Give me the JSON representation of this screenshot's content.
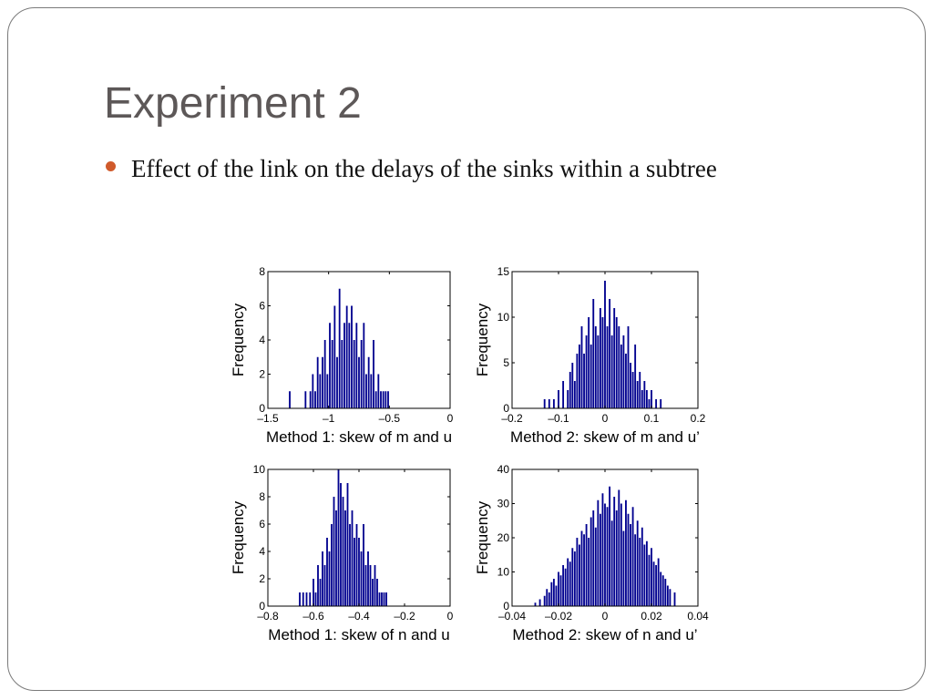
{
  "slide": {
    "title": "Experiment 2",
    "bullets": [
      "Effect of the link on the delays of the sinks within a subtree"
    ]
  },
  "colors": {
    "bar": "#00008f",
    "bullet": "#d05a2b",
    "title": "#5d5858"
  },
  "chart_data": [
    {
      "type": "bar",
      "subtype": "histogram",
      "xlabel": "Method 1: skew of m and u",
      "ylabel": "Frequency",
      "xlim": [
        -1.5,
        0
      ],
      "ylim": [
        0,
        8
      ],
      "xticks": [
        -1.5,
        -1,
        -0.5,
        0
      ],
      "xtick_labels": [
        "–1.5",
        "–1",
        "–0.5",
        "0"
      ],
      "yticks": [
        0,
        2,
        4,
        6,
        8
      ],
      "ytick_labels": [
        "0",
        "2",
        "4",
        "6",
        "8"
      ],
      "x": [
        -1.32,
        -1.19,
        -1.15,
        -1.13,
        -1.11,
        -1.09,
        -1.07,
        -1.05,
        -1.03,
        -1.01,
        -0.99,
        -0.97,
        -0.95,
        -0.93,
        -0.91,
        -0.89,
        -0.87,
        -0.85,
        -0.83,
        -0.81,
        -0.79,
        -0.77,
        -0.75,
        -0.73,
        -0.71,
        -0.69,
        -0.67,
        -0.65,
        -0.63,
        -0.61,
        -0.59,
        -0.57,
        -0.55,
        -0.53,
        -0.51
      ],
      "values": [
        1,
        1,
        1,
        2,
        1,
        3,
        2,
        3,
        4,
        2,
        5,
        4,
        6,
        3,
        7,
        4,
        5,
        6,
        5,
        6,
        4,
        5,
        3,
        4,
        5,
        2,
        3,
        2,
        4,
        1,
        2,
        1,
        1,
        1,
        1
      ]
    },
    {
      "type": "bar",
      "subtype": "histogram",
      "xlabel": "Method 2: skew of m and u’",
      "ylabel": "Frequency",
      "xlim": [
        -0.2,
        0.2
      ],
      "ylim": [
        0,
        15
      ],
      "xticks": [
        -0.2,
        -0.1,
        0,
        0.1,
        0.2
      ],
      "xtick_labels": [
        "–0.2",
        "–0.1",
        "0",
        "0.1",
        "0.2"
      ],
      "yticks": [
        0,
        5,
        10,
        15
      ],
      "ytick_labels": [
        "0",
        "5",
        "10",
        "15"
      ],
      "x": [
        -0.13,
        -0.12,
        -0.11,
        -0.1,
        -0.09,
        -0.08,
        -0.075,
        -0.07,
        -0.065,
        -0.06,
        -0.055,
        -0.05,
        -0.045,
        -0.04,
        -0.035,
        -0.03,
        -0.025,
        -0.02,
        -0.015,
        -0.01,
        -0.005,
        0,
        0.005,
        0.01,
        0.015,
        0.02,
        0.025,
        0.03,
        0.035,
        0.04,
        0.045,
        0.05,
        0.055,
        0.06,
        0.065,
        0.07,
        0.075,
        0.08,
        0.085,
        0.09,
        0.095,
        0.1,
        0.11,
        0.12
      ],
      "values": [
        1,
        1,
        1,
        2,
        3,
        2,
        4,
        5,
        3,
        6,
        7,
        9,
        6,
        8,
        10,
        7,
        12,
        9,
        8,
        11,
        10,
        14,
        9,
        12,
        8,
        11,
        10,
        9,
        7,
        8,
        6,
        9,
        5,
        4,
        7,
        3,
        4,
        2,
        3,
        2,
        1,
        2,
        1,
        1
      ]
    },
    {
      "type": "bar",
      "subtype": "histogram",
      "xlabel": "Method 1: skew of n and u",
      "ylabel": "Frequency",
      "xlim": [
        -0.8,
        0
      ],
      "ylim": [
        0,
        10
      ],
      "xticks": [
        -0.8,
        -0.6,
        -0.4,
        -0.2,
        0
      ],
      "xtick_labels": [
        "–0.8",
        "–0.6",
        "–0.4",
        "–0.2",
        "0"
      ],
      "yticks": [
        0,
        2,
        4,
        6,
        8,
        10
      ],
      "ytick_labels": [
        "0",
        "2",
        "4",
        "6",
        "8",
        "10"
      ],
      "x": [
        -0.66,
        -0.645,
        -0.63,
        -0.615,
        -0.6,
        -0.59,
        -0.58,
        -0.57,
        -0.56,
        -0.55,
        -0.54,
        -0.53,
        -0.52,
        -0.51,
        -0.5,
        -0.49,
        -0.48,
        -0.47,
        -0.46,
        -0.45,
        -0.44,
        -0.43,
        -0.42,
        -0.41,
        -0.4,
        -0.39,
        -0.38,
        -0.37,
        -0.36,
        -0.35,
        -0.34,
        -0.33,
        -0.32,
        -0.31,
        -0.3,
        -0.29,
        -0.28
      ],
      "values": [
        1,
        1,
        1,
        1,
        2,
        1,
        3,
        2,
        4,
        3,
        5,
        4,
        6,
        8,
        7,
        10,
        9,
        8,
        7,
        9,
        6,
        7,
        5,
        6,
        5,
        4,
        6,
        3,
        4,
        3,
        2,
        3,
        2,
        1,
        1,
        1,
        1
      ]
    },
    {
      "type": "bar",
      "subtype": "histogram",
      "xlabel": "Method 2: skew of n and u’",
      "ylabel": "Frequency",
      "xlim": [
        -0.04,
        0.04
      ],
      "ylim": [
        0,
        40
      ],
      "xticks": [
        -0.04,
        -0.02,
        0,
        0.02,
        0.04
      ],
      "xtick_labels": [
        "–0.04",
        "–0.02",
        "0",
        "0.02",
        "0.04"
      ],
      "yticks": [
        0,
        10,
        20,
        30,
        40
      ],
      "ytick_labels": [
        "0",
        "10",
        "20",
        "30",
        "40"
      ],
      "x": [
        -0.03,
        -0.028,
        -0.026,
        -0.025,
        -0.024,
        -0.023,
        -0.022,
        -0.021,
        -0.02,
        -0.019,
        -0.018,
        -0.017,
        -0.016,
        -0.015,
        -0.014,
        -0.013,
        -0.012,
        -0.011,
        -0.01,
        -0.009,
        -0.008,
        -0.007,
        -0.006,
        -0.005,
        -0.004,
        -0.003,
        -0.002,
        -0.001,
        0,
        0.001,
        0.002,
        0.003,
        0.004,
        0.005,
        0.006,
        0.007,
        0.008,
        0.009,
        0.01,
        0.011,
        0.012,
        0.013,
        0.014,
        0.015,
        0.016,
        0.017,
        0.018,
        0.019,
        0.02,
        0.021,
        0.022,
        0.023,
        0.024,
        0.025,
        0.026,
        0.027,
        0.028,
        0.03
      ],
      "values": [
        1,
        2,
        3,
        5,
        4,
        7,
        8,
        6,
        10,
        9,
        12,
        11,
        14,
        13,
        17,
        16,
        20,
        18,
        22,
        21,
        24,
        20,
        26,
        28,
        23,
        31,
        27,
        33,
        30,
        29,
        35,
        25,
        32,
        28,
        34,
        30,
        22,
        31,
        27,
        24,
        29,
        21,
        25,
        20,
        23,
        18,
        19,
        15,
        17,
        13,
        12,
        14,
        10,
        9,
        8,
        6,
        5,
        4
      ]
    }
  ]
}
